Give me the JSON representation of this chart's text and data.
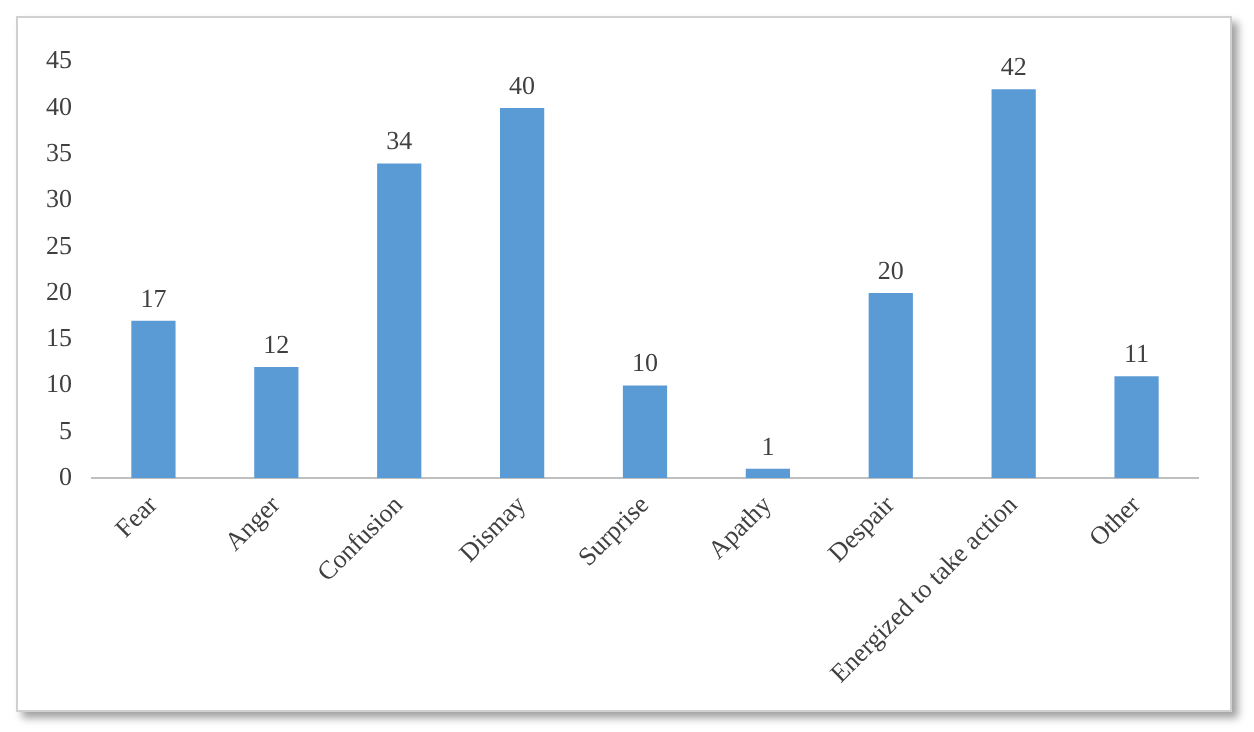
{
  "chart_data": {
    "type": "bar",
    "categories": [
      "Fear",
      "Anger",
      "Confusion",
      "Dismay",
      "Surprise",
      "Apathy",
      "Despair",
      "Energized to take action",
      "Other"
    ],
    "values": [
      17,
      12,
      34,
      40,
      10,
      1,
      20,
      42,
      11
    ],
    "color": "#5b9bd5",
    "ylim": [
      0,
      45
    ],
    "yticks": [
      0,
      5,
      10,
      15,
      20,
      25,
      30,
      35,
      40,
      45
    ],
    "grid": false,
    "legend": false,
    "data_labels": true
  }
}
